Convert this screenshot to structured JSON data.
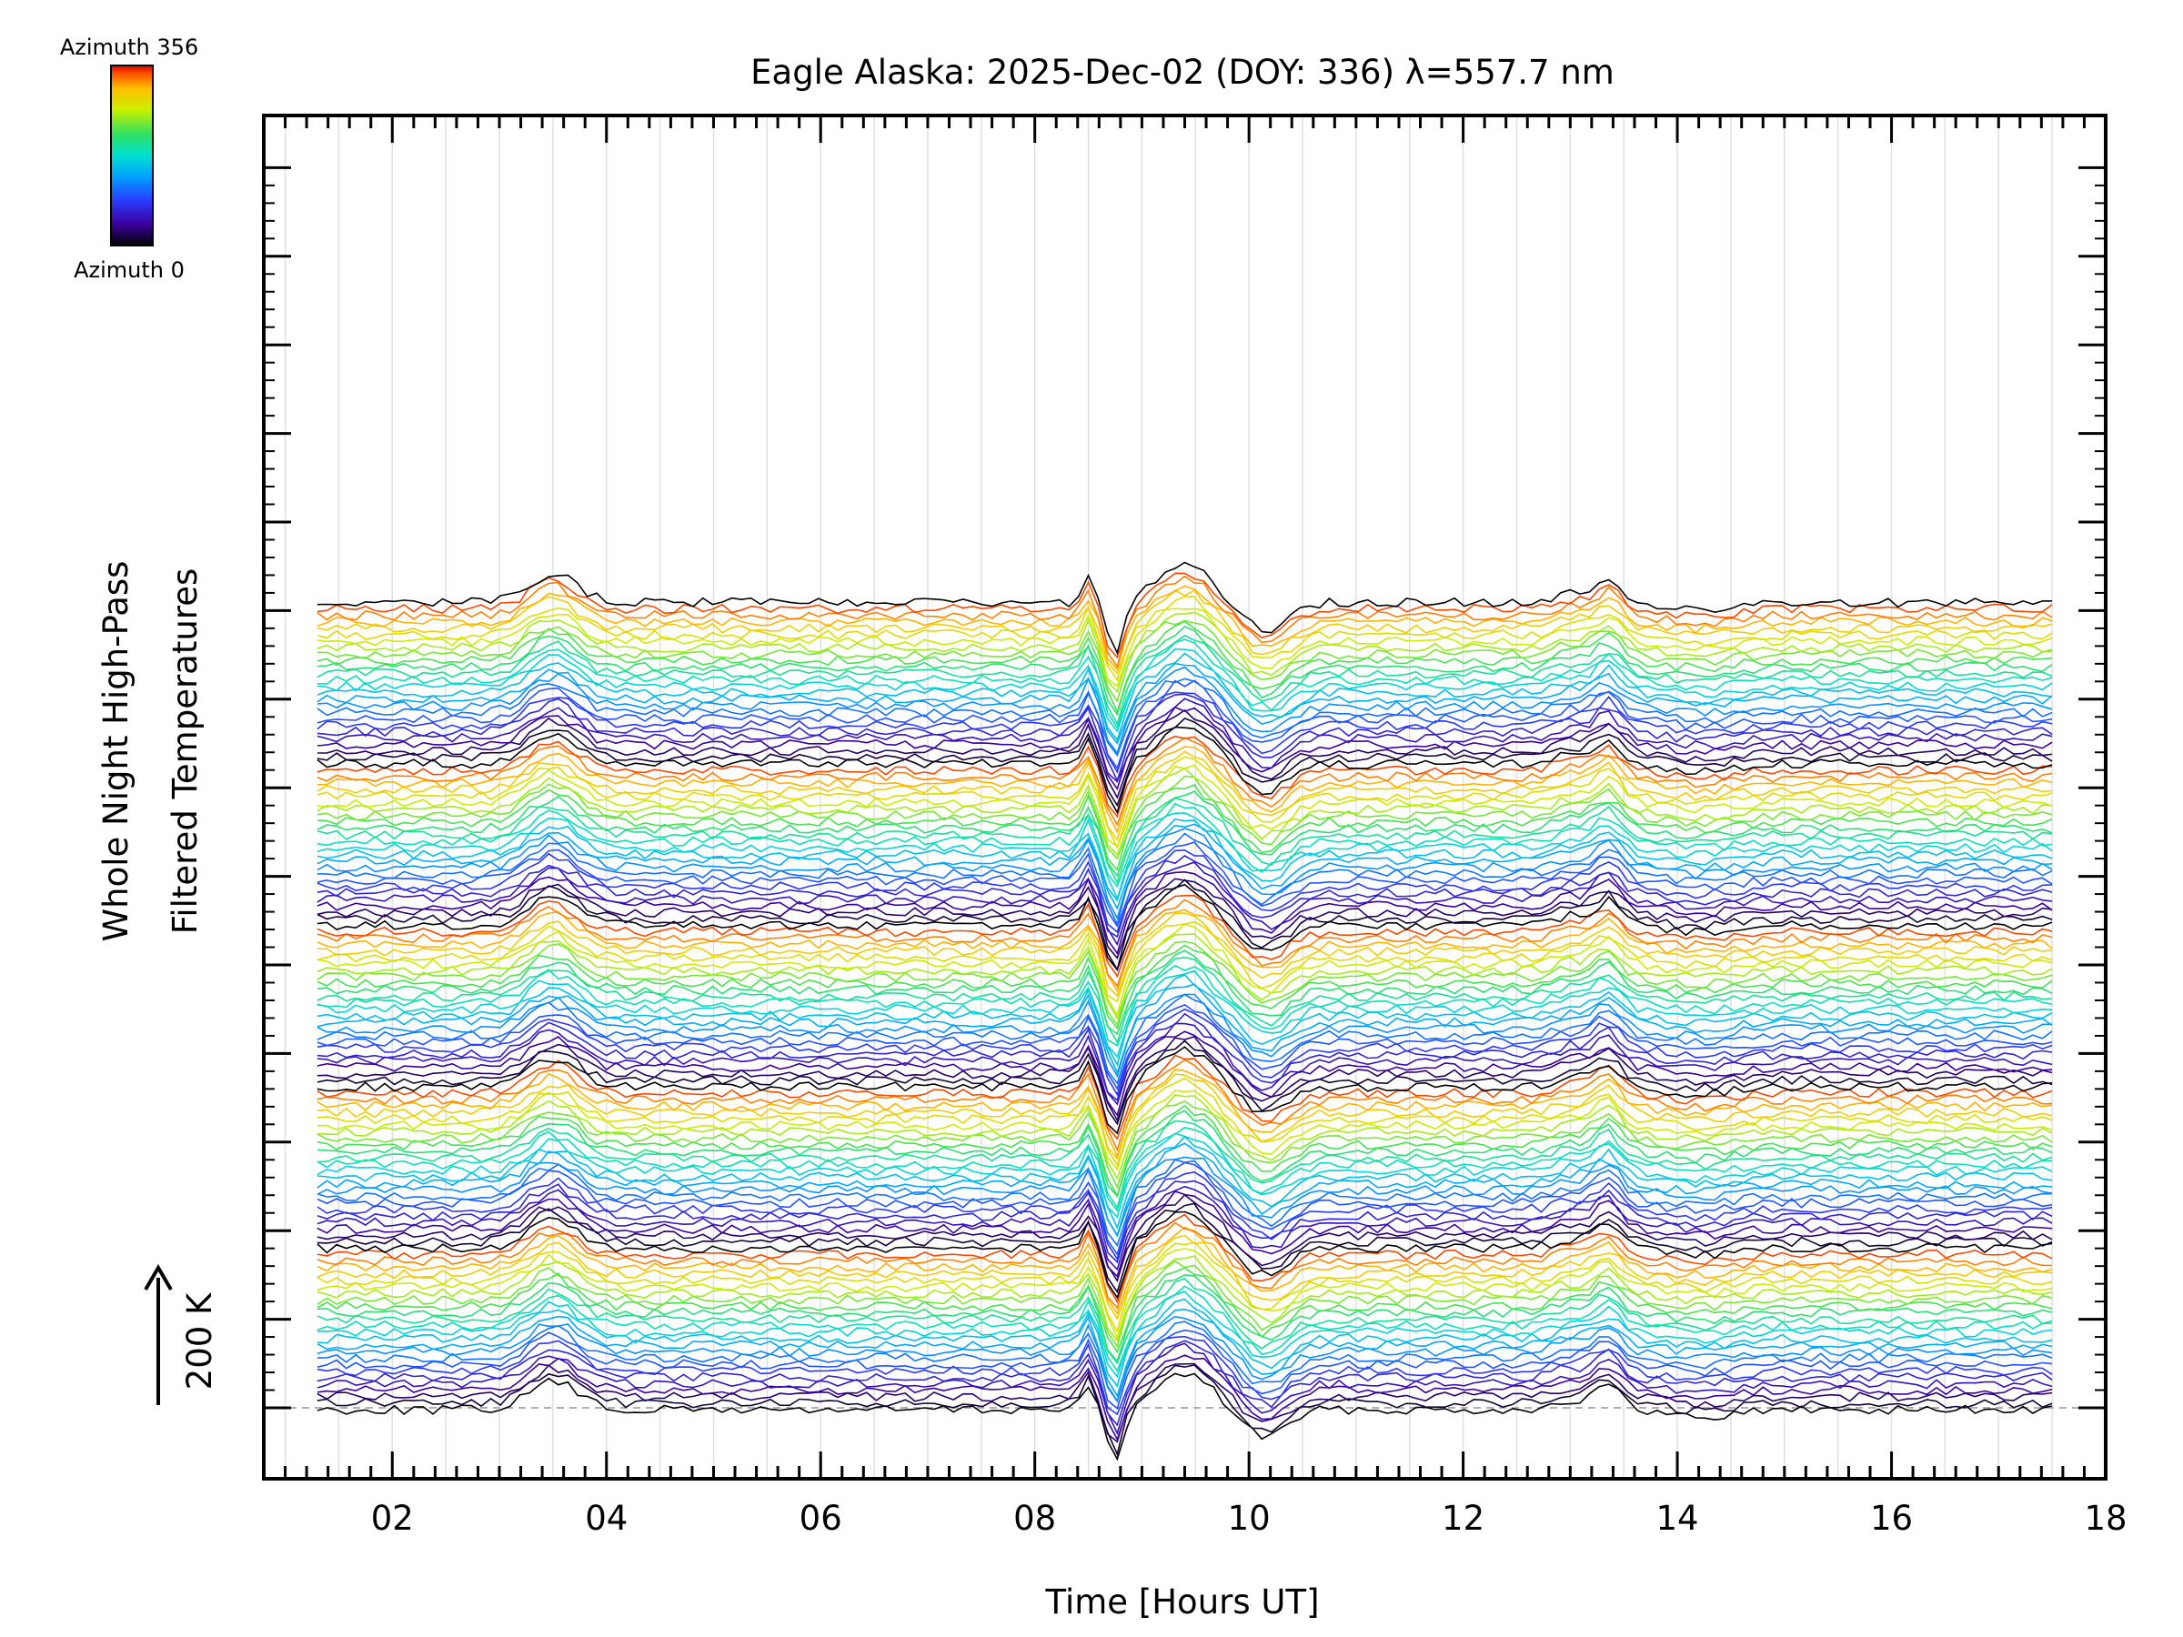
{
  "chart_data": {
    "type": "line",
    "title": "Eagle Alaska: 2025-Dec-02 (DOY: 336) λ=557.7 nm",
    "xlabel": "Time [Hours UT]",
    "ylabel_line1": "Whole Night High-Pass",
    "ylabel_line2": "Filtered Temperatures",
    "scale_bar_label": "200 K",
    "colorbar": {
      "top_label": "Azimuth 356",
      "bottom_label": "Azimuth 0"
    },
    "xlim": [
      0.8,
      18.0
    ],
    "x_tick_labels": [
      "02",
      "04",
      "06",
      "08",
      "10",
      "12",
      "14",
      "16",
      "18"
    ],
    "x_tick_values": [
      2,
      4,
      6,
      8,
      10,
      12,
      14,
      16,
      18
    ],
    "x_range_of_data": [
      1.3,
      17.5
    ],
    "series_count": 126,
    "azimuth_range": [
      0,
      356
    ],
    "colormap": [
      "#000000",
      "#3b00a0",
      "#2a3cff",
      "#00a0ff",
      "#00e0d0",
      "#30e060",
      "#c8f000",
      "#ffc000",
      "#ff5a00",
      "#e00000"
    ],
    "baseline_color": "#b0b0b0",
    "grid": true
  }
}
